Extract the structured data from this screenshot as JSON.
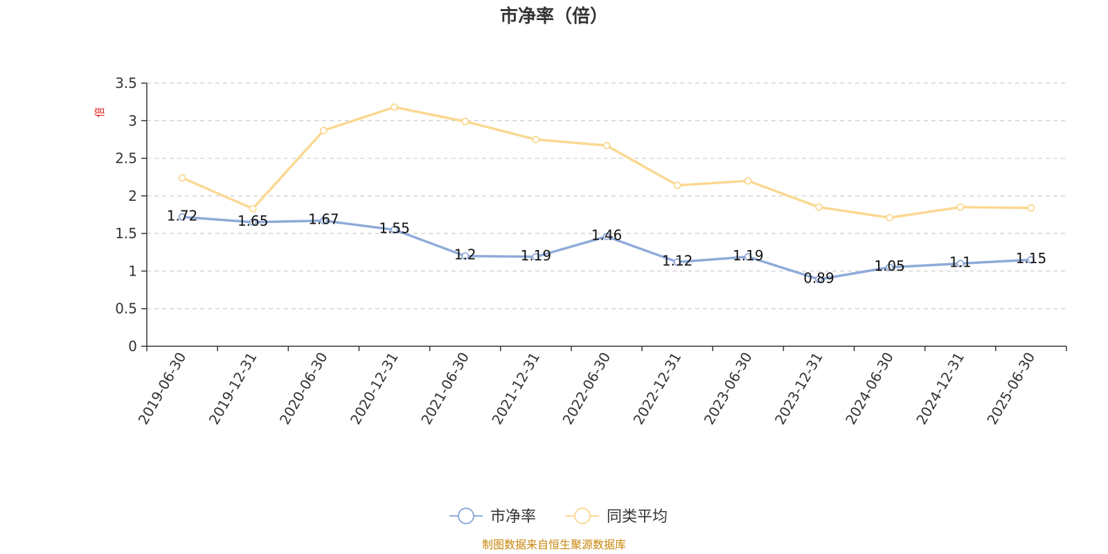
{
  "title": "市净率（倍）",
  "source": "制图数据来自恒生聚源数据库",
  "colors": {
    "series_pb": "#8eaad9",
    "series_avg": "#fad892",
    "unit_text": "#e02020",
    "source_text": "#c8860b",
    "axis": "#333333",
    "grid": "#cccccc"
  },
  "chart_data": {
    "type": "line",
    "title": "市净率（倍）",
    "ylabel": "倍",
    "ylim": [
      0,
      3.5
    ],
    "yticks": [
      0,
      0.5,
      1,
      1.5,
      2,
      2.5,
      3,
      3.5
    ],
    "ytick_labels": [
      "0",
      "0.5",
      "1",
      "1.5",
      "2",
      "2.5",
      "3",
      "3.5"
    ],
    "grid": true,
    "legend_position": "bottom",
    "categories": [
      "2019-06-30",
      "2019-12-31",
      "2020-06-30",
      "2020-12-31",
      "2021-06-30",
      "2021-12-31",
      "2022-06-30",
      "2022-12-31",
      "2023-06-30",
      "2023-12-31",
      "2024-06-30",
      "2024-12-31",
      "2025-06-30"
    ],
    "series": [
      {
        "name": "市净率",
        "values": [
          1.72,
          1.65,
          1.67,
          1.55,
          1.2,
          1.19,
          1.46,
          1.12,
          1.19,
          0.89,
          1.05,
          1.1,
          1.15
        ],
        "labels": [
          "1.72",
          "1.65",
          "1.67",
          "1.55",
          "1.2",
          "1.19",
          "1.46",
          "1.12",
          "1.19",
          "0.89",
          "1.05",
          "1.1",
          "1.15"
        ],
        "show_labels": true
      },
      {
        "name": "同类平均",
        "values": [
          2.24,
          1.83,
          2.87,
          3.18,
          2.99,
          2.75,
          2.67,
          2.14,
          2.2,
          1.85,
          1.71,
          1.85,
          1.84
        ],
        "show_labels": false
      }
    ]
  }
}
